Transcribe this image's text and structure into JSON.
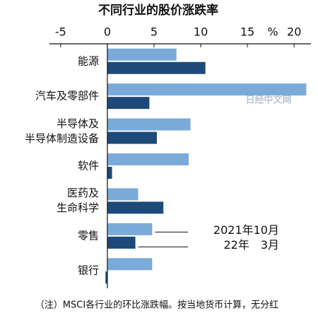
{
  "chart_data": {
    "type": "hbar",
    "title": "不同行业的股价涨跌率",
    "unit_label": "%",
    "categories": [
      "能源",
      "汽车及零部件",
      "半导体及\n半导体制造设备",
      "软件",
      "医药及\n生命科学",
      "零售",
      "银行"
    ],
    "series": [
      {
        "name": "2021年10月",
        "color": "#7aaad8",
        "values": [
          7.4,
          21.3,
          8.9,
          8.7,
          3.3,
          4.8,
          4.8
        ]
      },
      {
        "name": "22年　3月",
        "color": "#1d4a78",
        "values": [
          10.5,
          4.5,
          5.3,
          0.5,
          6.0,
          3.0,
          -0.2
        ]
      }
    ],
    "xlim": [
      -6.2,
      21.8
    ],
    "xticks": [
      -5,
      0,
      5,
      10,
      15,
      20
    ],
    "legend": "inline",
    "watermark": "日经中文网",
    "note": "（注）MSCI各行业的环比涨跌幅。按当地货币计算，无分红"
  }
}
